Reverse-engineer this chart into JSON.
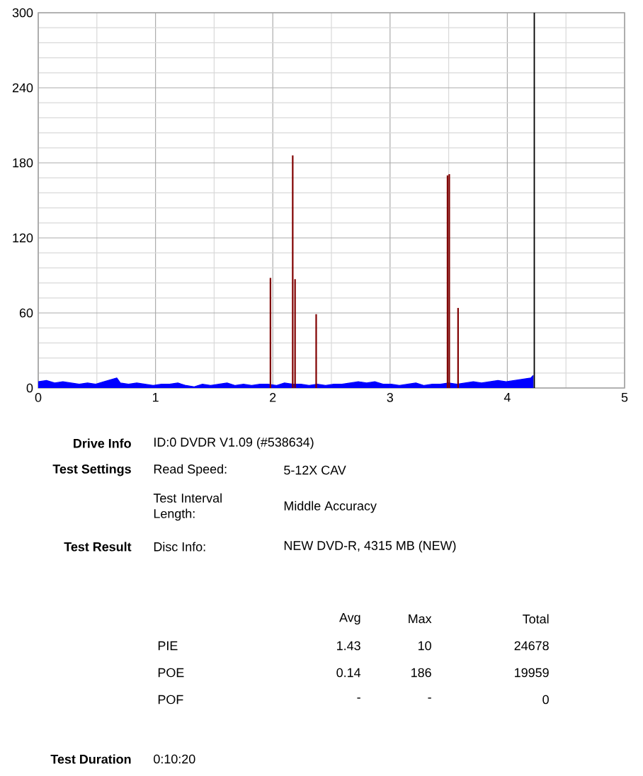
{
  "chart_data": {
    "type": "bar",
    "x": [
      1.98,
      2.17,
      2.19,
      2.37,
      3.49,
      3.505,
      3.58
    ],
    "xlim": [
      0,
      5
    ],
    "xticks": [
      0,
      1,
      2,
      3,
      4,
      5
    ],
    "ylim": [
      0,
      300
    ],
    "yticks": [
      0,
      60,
      120,
      180,
      240,
      300
    ],
    "grid": true,
    "series": [
      {
        "type": "area",
        "color": "#0000ff",
        "x": [
          0,
          0.07,
          0.14,
          0.21,
          0.28,
          0.35,
          0.42,
          0.49,
          0.56,
          0.67,
          0.7,
          0.77,
          0.84,
          0.91,
          0.98,
          1.05,
          1.12,
          1.19,
          1.26,
          1.33,
          1.4,
          1.47,
          1.54,
          1.61,
          1.68,
          1.75,
          1.82,
          1.89,
          1.96,
          2.03,
          2.1,
          2.17,
          2.24,
          2.31,
          2.38,
          2.45,
          2.52,
          2.59,
          2.66,
          2.73,
          2.8,
          2.87,
          2.94,
          3.01,
          3.08,
          3.15,
          3.22,
          3.29,
          3.36,
          3.43,
          3.5,
          3.57,
          3.64,
          3.71,
          3.78,
          3.85,
          3.92,
          3.99,
          4.06,
          4.13,
          4.2,
          4.22
        ],
        "values": [
          5,
          6,
          4,
          5,
          4,
          3,
          4,
          3,
          5,
          8,
          4,
          3,
          4,
          3,
          2,
          3,
          3,
          4,
          2,
          1,
          3,
          2,
          3,
          4,
          2,
          3,
          2,
          3,
          3,
          2,
          4,
          3,
          3,
          2,
          3,
          2,
          3,
          3,
          4,
          5,
          4,
          5,
          3,
          3,
          2,
          3,
          4,
          2,
          3,
          3,
          4,
          3,
          4,
          5,
          4,
          5,
          6,
          5,
          6,
          7,
          8,
          10
        ]
      },
      {
        "color": "#800000",
        "values": [
          88,
          186,
          87,
          59,
          170,
          171,
          64
        ]
      }
    ],
    "ref_lines": [
      {
        "axis": "x",
        "value": 4.23,
        "color": "#000000"
      }
    ],
    "annotations": [
      "Drive Info",
      "ID:0 DVDR V1.09 (#538634)",
      "Test Settings",
      "Read Speed:",
      "5-12X CAV",
      "Test Interval Length:",
      "Middle Accuracy",
      "Test Result",
      "Disc Info:",
      "NEW DVD-R, 4315 MB (NEW)",
      "Avg",
      "Max",
      "Total",
      "PIE",
      "1.43",
      "10",
      "24678",
      "POE",
      "0.14",
      "186",
      "19959",
      "POF",
      "-",
      "-",
      "0",
      "Test Duration",
      "0:10:20"
    ]
  }
}
